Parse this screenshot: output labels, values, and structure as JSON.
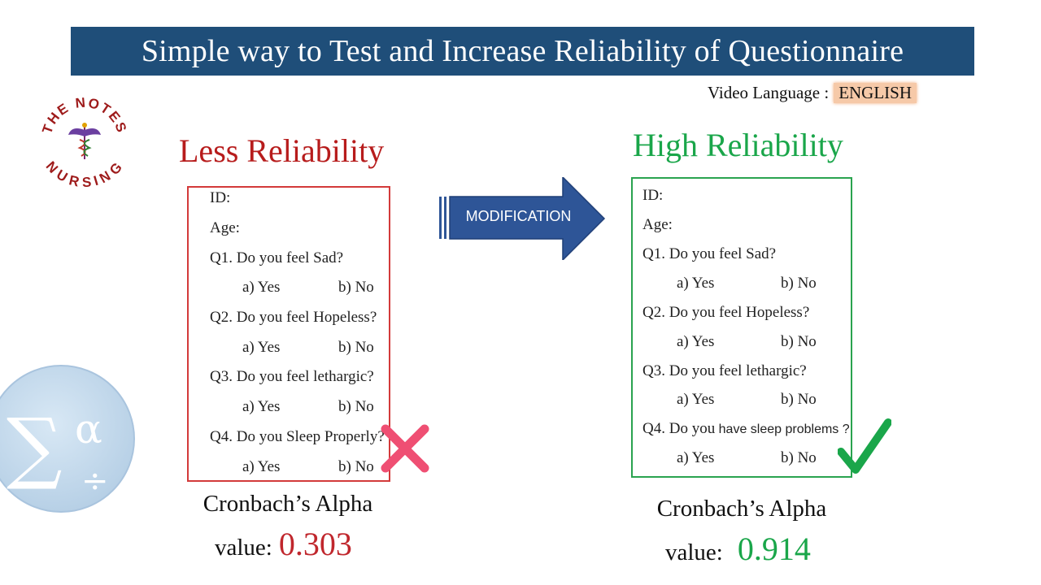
{
  "banner": {
    "title": "Simple way to Test and Increase Reliability of Questionnaire"
  },
  "language": {
    "label": "Video Language :",
    "value": "ENGLISH"
  },
  "logo": {
    "text_top": "THE NOTES",
    "text_bottom": "NURSING"
  },
  "arrow": {
    "label": "MODIFICATION"
  },
  "less": {
    "heading": "Less Reliability",
    "lines": {
      "id": "ID:",
      "age": "Age:",
      "q1": "Q1. Do you feel Sad?",
      "q2": "Q2. Do you feel Hopeless?",
      "q3": "Q3. Do you feel lethargic?",
      "q4": "Q4. Do you Sleep Properly?"
    },
    "opt_a": "a) Yes",
    "opt_b": "b) No",
    "alpha_label": "Cronbach’s Alpha",
    "value_label": "value:",
    "value": "0.303"
  },
  "high": {
    "heading": "High Reliability",
    "lines": {
      "id": "ID:",
      "age": "Age:",
      "q1": "Q1. Do you feel Sad?",
      "q2": "Q2. Do you feel Hopeless?",
      "q3": "Q3. Do you feel lethargic?",
      "q4_prefix": "Q4. Do you",
      "q4_suffix": " have sleep problems ?"
    },
    "opt_a": "a) Yes",
    "opt_b": "b) No",
    "alpha_label": "Cronbach’s Alpha",
    "value_label": "value:",
    "value": "0.914"
  },
  "icons": {
    "cross": "cross-icon",
    "check": "checkmark-icon",
    "sigma": "sigma-alpha-icon"
  },
  "colors": {
    "banner": "#1f4e79",
    "less": "#b71c1c",
    "high": "#1aa64a",
    "cross": "#ef4f73",
    "check": "#1aa64a",
    "arrow": "#2e5597"
  }
}
